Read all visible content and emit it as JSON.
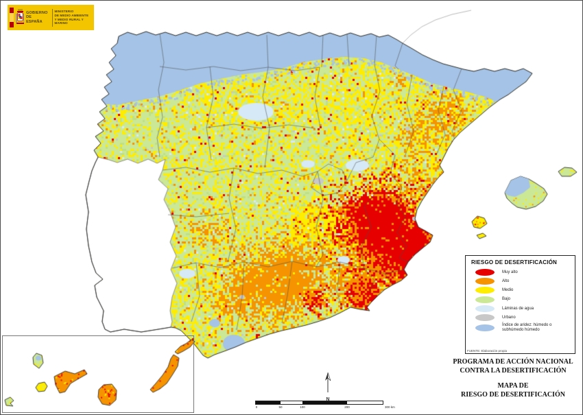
{
  "logo": {
    "government_line1": "GOBIERNO",
    "government_line2": "DE ESPAÑA",
    "ministry_line1": "MINISTERIO",
    "ministry_line2": "DE MEDIO AMBIENTE",
    "ministry_line3": "Y MEDIO RURAL Y MARINO"
  },
  "legend": {
    "title": "RIESGO DE DESERTIFICACIÓN",
    "items": [
      {
        "label": "Muy alto",
        "color": "#e60000"
      },
      {
        "label": "Alto",
        "color": "#f59300"
      },
      {
        "label": "Medio",
        "color": "#ffed00"
      },
      {
        "label": "Bajo",
        "color": "#cbe897"
      },
      {
        "label": "Láminas de agua",
        "color": "#d6e9f7"
      },
      {
        "label": "Urbano",
        "color": "#c8c8c8"
      },
      {
        "label": "Índice de aridez: húmedo o subhúmedo húmedo",
        "color": "#a5c3e6"
      }
    ],
    "source": "FUENTE: Elaboración propia"
  },
  "titles": {
    "program_line1": "PROGRAMA DE ACCIÓN NACIONAL",
    "program_line2": "CONTRA LA DESERTIFICACIÓN",
    "map_line1": "MAPA DE",
    "map_line2": "RIESGO DE DESERTIFICACIÓN"
  },
  "scalebar": {
    "labels": [
      "0",
      "50",
      "100",
      "200",
      "300 km"
    ],
    "north": "N"
  },
  "map": {
    "colors": {
      "risk_very_high": "#e60000",
      "risk_high": "#f59300",
      "risk_medium": "#ffed00",
      "risk_low": "#cbe897",
      "risk_low_alt": "#bfe083",
      "water_bodies": "#d6e9f7",
      "urban": "#c8c8c8",
      "humid_index": "#a5c3e6",
      "sea": "#ffffff",
      "coast_line": "#2b2b2b",
      "province_line": "#4a4a4a",
      "neighbor_line": "#999999"
    }
  }
}
